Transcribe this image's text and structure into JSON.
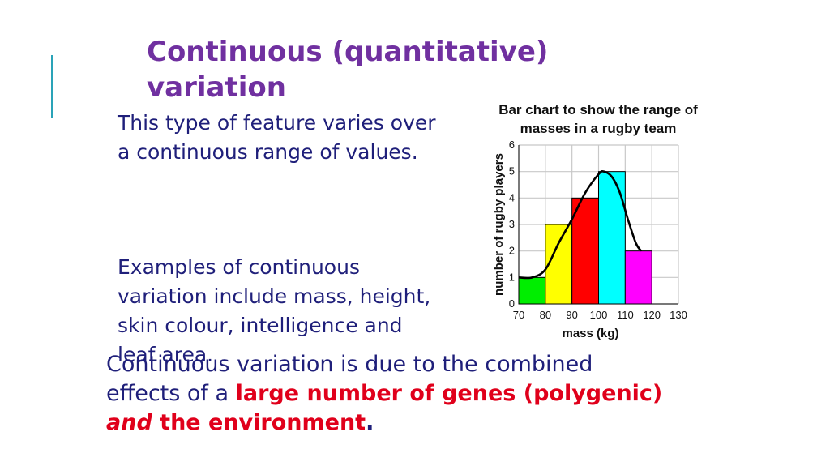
{
  "slide": {
    "title": "Continuous (quantitative) variation",
    "paragraph1": "This type of feature varies over  a continuous range of values.",
    "paragraph2": "Examples of continuous variation include mass, height, skin colour, intelligence and leaf area.",
    "conclusion": {
      "part1": "Continuous variation is due to the combined effects of a ",
      "red1": "large number of genes (polygenic)",
      "italic_and": "and",
      "red2": " the environment",
      "period": "."
    }
  },
  "colors": {
    "title": "#7030a0",
    "body_text": "#1f1f7a",
    "highlight": "#e0001b",
    "accent_line": "#2aa3b8"
  },
  "chart_data": {
    "type": "bar",
    "title": "Bar chart to show the range of masses in a rugby team",
    "xlabel": "mass (kg)",
    "ylabel": "number of rugby players",
    "x_ticks": [
      "70",
      "80",
      "90",
      "100",
      "110",
      "120",
      "130"
    ],
    "y_ticks": [
      "0",
      "1",
      "2",
      "3",
      "4",
      "5",
      "6"
    ],
    "xlim": [
      70,
      130
    ],
    "ylim": [
      0,
      6
    ],
    "grid": true,
    "bins": [
      {
        "from": 70,
        "to": 80,
        "value": 1,
        "color": "#00ee00"
      },
      {
        "from": 80,
        "to": 90,
        "value": 3,
        "color": "#ffff00"
      },
      {
        "from": 90,
        "to": 100,
        "value": 4,
        "color": "#ff0000"
      },
      {
        "from": 100,
        "to": 110,
        "value": 5,
        "color": "#00ffff"
      },
      {
        "from": 110,
        "to": 120,
        "value": 2,
        "color": "#ff00ff"
      }
    ],
    "curve": [
      [
        70,
        1.0
      ],
      [
        75,
        1.0
      ],
      [
        80,
        1.3
      ],
      [
        85,
        2.3
      ],
      [
        90,
        3.2
      ],
      [
        95,
        4.2
      ],
      [
        100,
        4.9
      ],
      [
        102,
        5.0
      ],
      [
        105,
        4.8
      ],
      [
        108,
        4.2
      ],
      [
        111,
        3.2
      ],
      [
        114,
        2.3
      ],
      [
        116,
        2.0
      ]
    ]
  }
}
